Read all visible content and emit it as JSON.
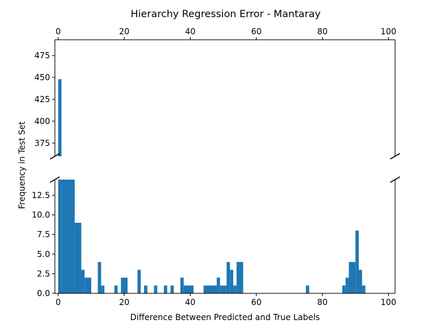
{
  "chart_data": {
    "type": "bar",
    "title": "Hierarchy Regression Error - Mantaray",
    "xlabel": "Difference Between Predicted and True Labels",
    "ylabel": "Frequency in Test Set",
    "xlim": [
      -1,
      102
    ],
    "top_panel": {
      "ylim": [
        360,
        493
      ],
      "yticks": [
        375,
        400,
        425,
        450,
        475
      ]
    },
    "bottom_panel": {
      "ylim": [
        0,
        14.5
      ],
      "yticks": [
        0.0,
        2.5,
        5.0,
        7.5,
        10.0,
        12.5
      ]
    },
    "xticks": [
      0,
      20,
      40,
      60,
      80,
      100
    ],
    "bar_color": "#1f77b4",
    "bars": [
      {
        "x0": 0,
        "x1": 1,
        "value": 448
      },
      {
        "x0": 1,
        "x1": 5,
        "value": 15
      },
      {
        "x0": 5,
        "x1": 7,
        "value": 9
      },
      {
        "x0": 7,
        "x1": 8,
        "value": 3
      },
      {
        "x0": 8,
        "x1": 10,
        "value": 2
      },
      {
        "x0": 12,
        "x1": 13,
        "value": 4
      },
      {
        "x0": 13,
        "x1": 14,
        "value": 1
      },
      {
        "x0": 17,
        "x1": 18,
        "value": 1
      },
      {
        "x0": 19,
        "x1": 21,
        "value": 2
      },
      {
        "x0": 24,
        "x1": 25,
        "value": 3
      },
      {
        "x0": 26,
        "x1": 27,
        "value": 1
      },
      {
        "x0": 29,
        "x1": 30,
        "value": 1
      },
      {
        "x0": 32,
        "x1": 33,
        "value": 1
      },
      {
        "x0": 34,
        "x1": 35,
        "value": 1
      },
      {
        "x0": 37,
        "x1": 38,
        "value": 2
      },
      {
        "x0": 38,
        "x1": 41,
        "value": 1
      },
      {
        "x0": 44,
        "x1": 48,
        "value": 1
      },
      {
        "x0": 48,
        "x1": 49,
        "value": 2
      },
      {
        "x0": 49,
        "x1": 51,
        "value": 1
      },
      {
        "x0": 51,
        "x1": 52,
        "value": 4
      },
      {
        "x0": 52,
        "x1": 53,
        "value": 3
      },
      {
        "x0": 53,
        "x1": 54,
        "value": 1
      },
      {
        "x0": 54,
        "x1": 56,
        "value": 4
      },
      {
        "x0": 75,
        "x1": 76,
        "value": 1
      },
      {
        "x0": 86,
        "x1": 87,
        "value": 1
      },
      {
        "x0": 87,
        "x1": 88,
        "value": 2
      },
      {
        "x0": 88,
        "x1": 90,
        "value": 4
      },
      {
        "x0": 90,
        "x1": 91,
        "value": 8
      },
      {
        "x0": 91,
        "x1": 92,
        "value": 3
      },
      {
        "x0": 92,
        "x1": 93,
        "value": 1
      }
    ],
    "grid": false,
    "legend": "none"
  }
}
